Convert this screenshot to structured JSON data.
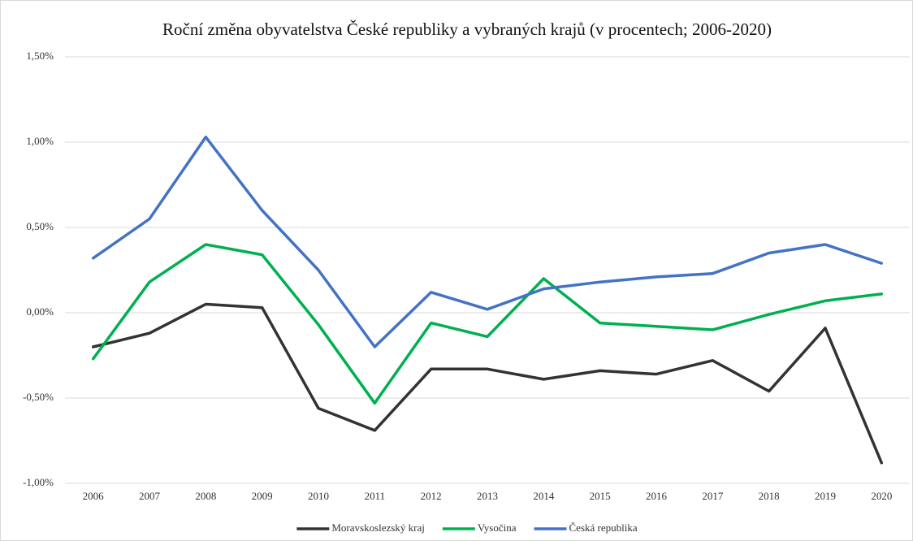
{
  "chart_data": {
    "type": "line",
    "title": "Roční změna obyvatelstva České republiky a vybraných krajů (v procentech; 2006-2020)",
    "categories": [
      "2006",
      "2007",
      "2008",
      "2009",
      "2010",
      "2011",
      "2012",
      "2013",
      "2014",
      "2015",
      "2016",
      "2017",
      "2018",
      "2019",
      "2020"
    ],
    "series": [
      {
        "name": "Moravskoslezský kraj",
        "color": "#333333",
        "values": [
          -0.2,
          -0.12,
          0.05,
          0.03,
          -0.56,
          -0.69,
          -0.33,
          -0.33,
          -0.39,
          -0.34,
          -0.36,
          -0.28,
          -0.46,
          -0.09,
          -0.88
        ]
      },
      {
        "name": "Vysočina",
        "color": "#00b050",
        "values": [
          -0.27,
          0.18,
          0.4,
          0.34,
          -0.07,
          -0.53,
          -0.06,
          -0.14,
          0.2,
          -0.06,
          -0.08,
          -0.1,
          -0.01,
          0.07,
          0.11
        ]
      },
      {
        "name": "Česká republika",
        "color": "#4472c4",
        "values": [
          0.32,
          0.55,
          1.03,
          0.6,
          0.25,
          -0.2,
          0.12,
          0.02,
          0.14,
          0.18,
          0.21,
          0.23,
          0.35,
          0.4,
          0.29
        ]
      }
    ],
    "ylim": [
      -1.0,
      1.5
    ],
    "yticks": [
      {
        "value": -1.0,
        "label": "-1,00%"
      },
      {
        "value": -0.5,
        "label": "-0,50%"
      },
      {
        "value": 0,
        "label": "0,00%"
      },
      {
        "value": 0.5,
        "label": "0,50%"
      },
      {
        "value": 1.0,
        "label": "1,00%"
      },
      {
        "value": 1.5,
        "label": "1,50%"
      }
    ],
    "grid": true,
    "legend": "bottom"
  }
}
